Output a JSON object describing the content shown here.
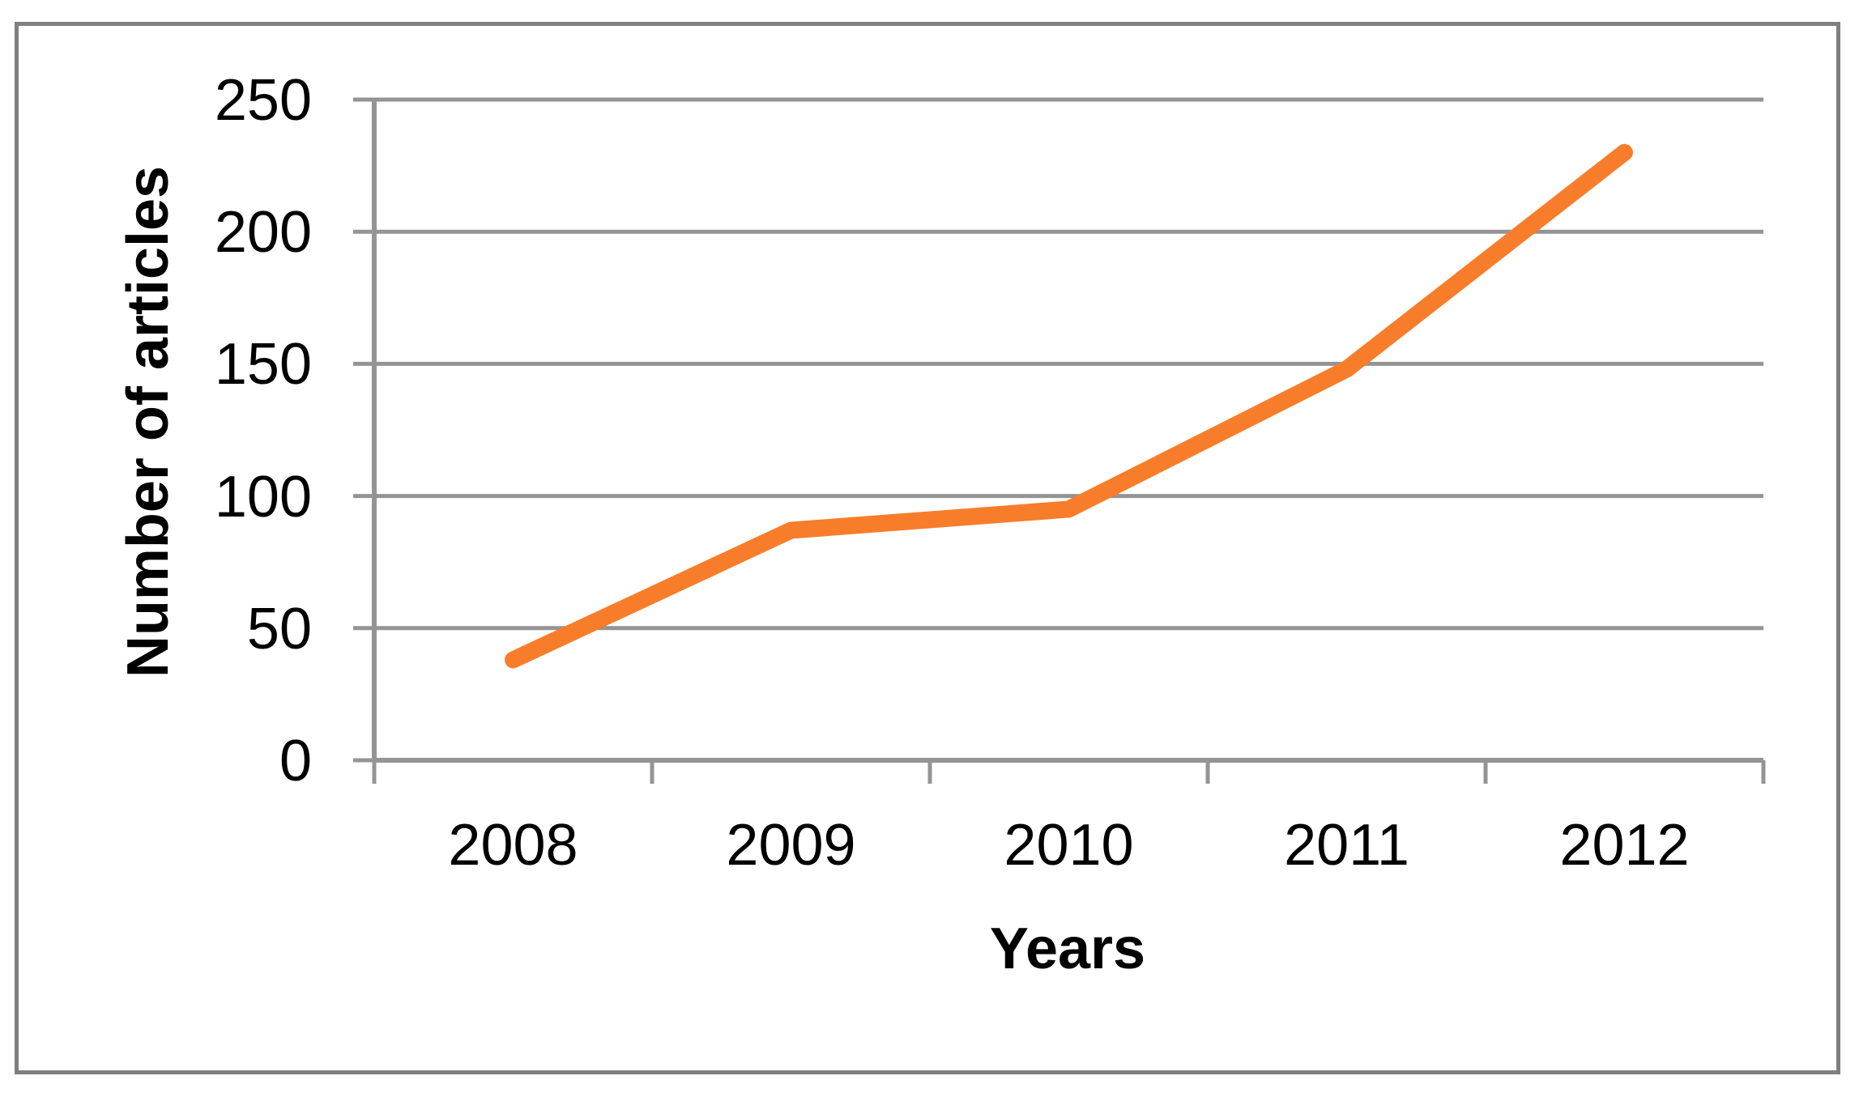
{
  "chart_data": {
    "type": "line",
    "title": "",
    "categories": [
      "2008",
      "2009",
      "2010",
      "2011",
      "2012"
    ],
    "series": [
      {
        "name": "Number of articles",
        "values": [
          38,
          87,
          95,
          148,
          230
        ]
      }
    ],
    "xlabel": "Years",
    "ylabel": "Number of articles",
    "ylim": [
      0,
      250
    ],
    "yticks": [
      0,
      50,
      100,
      150,
      200,
      250
    ],
    "grid": true,
    "legend": false,
    "colors": {
      "series": "#F87D2B",
      "gridline": "#949494",
      "axis": "#949494",
      "border": "#7F7F7F",
      "text": "#000000",
      "background": "#FFFFFF"
    }
  }
}
